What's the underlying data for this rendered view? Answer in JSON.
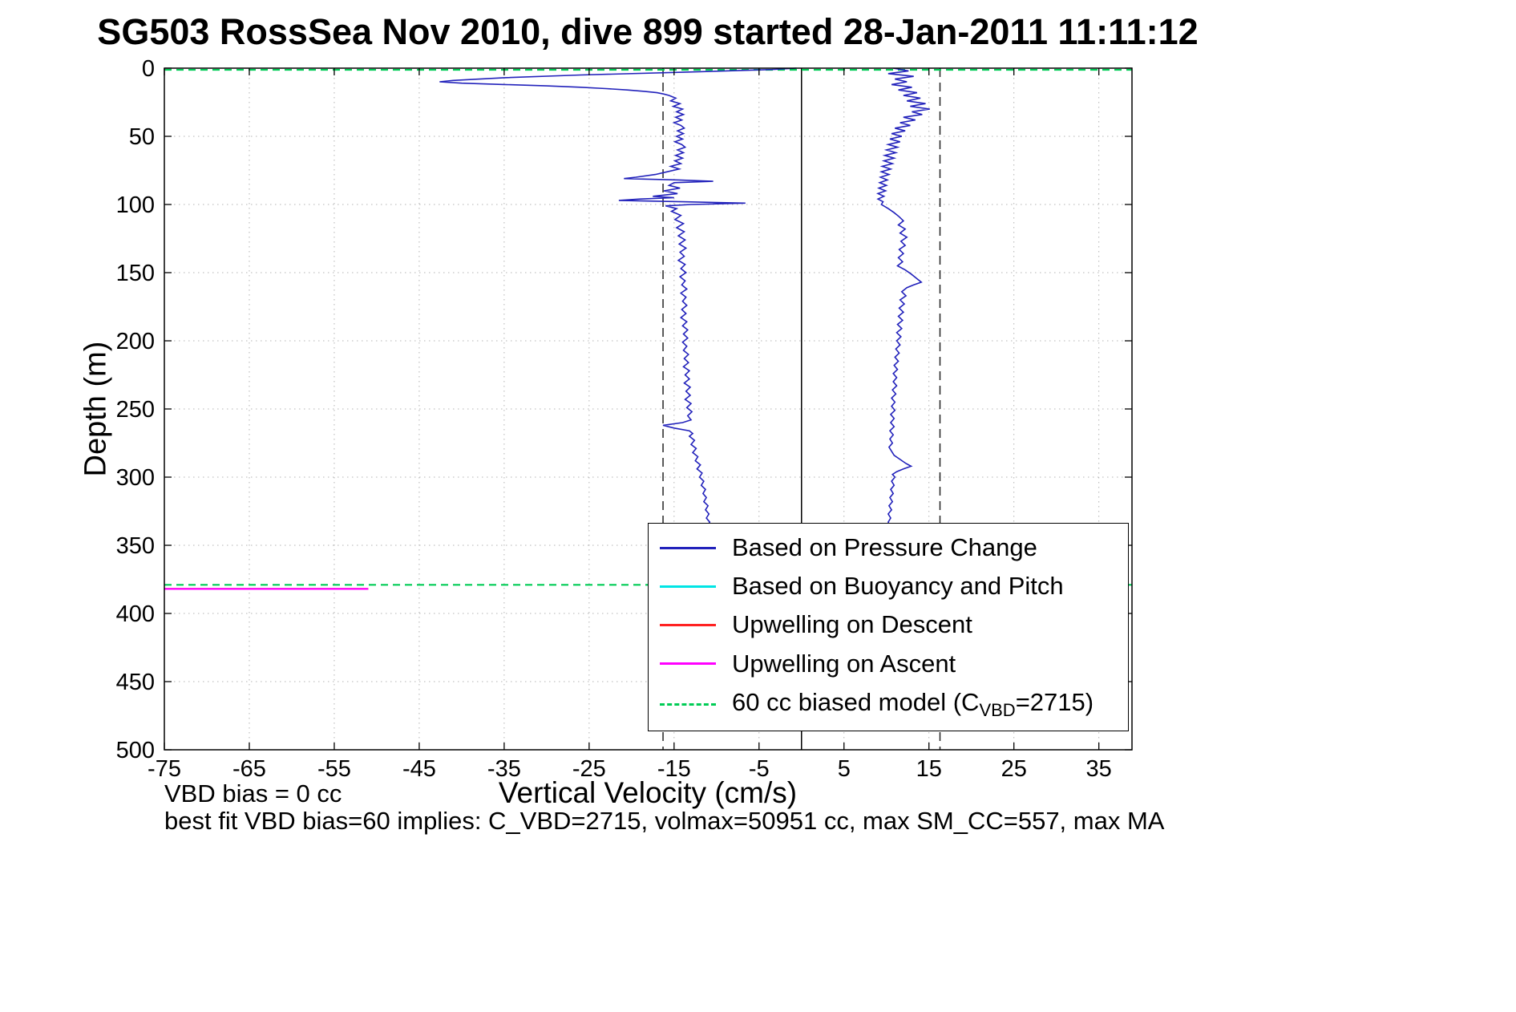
{
  "annotations": {
    "vbd_bias": "VBD bias = 0 cc",
    "best_fit": "best fit VBD bias=60 implies: C_VBD=2715, volmax=50951 cc, max SM_CC=557, max MA"
  },
  "chart_data": {
    "type": "line",
    "title": "SG503 RossSea Nov 2010, dive 899 started 28-Jan-2011 11:11:12",
    "xlabel": "Vertical Velocity (cm/s)",
    "ylabel": "Depth (m)",
    "xlim": [
      -75,
      38.9
    ],
    "ylim": [
      0,
      500
    ],
    "y_inverted": true,
    "grid": true,
    "legend_position": "center-right",
    "x_ticks": [
      -75,
      -65,
      -55,
      -45,
      -35,
      -25,
      -15,
      -5,
      5,
      15,
      25,
      35
    ],
    "y_ticks": [
      0,
      50,
      100,
      150,
      200,
      250,
      300,
      350,
      400,
      450,
      500
    ],
    "colors": {
      "pressure": "#2222bb",
      "buoyancy": "#00e5e5",
      "upwelling_descent": "#ff2222",
      "upwelling_ascent": "#ff00ff",
      "biased_model": "#00cc55",
      "grid": "#b3b3b3",
      "axis": "#000000"
    },
    "reference_lines": [
      {
        "orientation": "vertical",
        "x": 0,
        "color": "#000000",
        "style": "solid",
        "name": "zero-velocity-line"
      },
      {
        "orientation": "vertical",
        "x": -16.3,
        "color": "#222222",
        "style": "dashed",
        "name": "max-descent-speed-line"
      },
      {
        "orientation": "vertical",
        "x": 16.3,
        "color": "#222222",
        "style": "dashed",
        "name": "max-ascent-speed-line"
      }
    ],
    "segments": [
      {
        "name": "biased-model-surface-line",
        "color": "#00cc55",
        "style": "dashed",
        "depth": 1.2,
        "x_from": -75,
        "x_to": 38.9
      },
      {
        "name": "biased-model-deep-line",
        "color": "#00cc55",
        "style": "dashed",
        "depth": 379,
        "x_from": -75,
        "x_to": 38.9
      },
      {
        "name": "upwelling-descent-line",
        "color": "#ff2222",
        "style": "solid",
        "depth": 382,
        "x_from": -75,
        "x_to": -51
      },
      {
        "name": "upwelling-ascent-line",
        "color": "#ff00ff",
        "style": "solid",
        "depth": 382,
        "x_from": -75,
        "x_to": -51
      }
    ],
    "series": [
      {
        "name": "Based on Pressure Change (descent)",
        "color": "#2222bb",
        "style": "solid",
        "points": [
          [
            0,
            -0.6
          ],
          [
            1,
            -3.5
          ],
          [
            3,
            -14
          ],
          [
            5,
            -26
          ],
          [
            7,
            -35
          ],
          [
            9,
            -41
          ],
          [
            10,
            -42.6
          ],
          [
            11,
            -40
          ],
          [
            12,
            -35
          ],
          [
            13,
            -30
          ],
          [
            14,
            -26
          ],
          [
            15,
            -23
          ],
          [
            16,
            -20.5
          ],
          [
            17,
            -18.5
          ],
          [
            18,
            -17
          ],
          [
            19,
            -16.2
          ],
          [
            20,
            -15.6
          ],
          [
            22,
            -14.8
          ],
          [
            24,
            -15.4
          ],
          [
            26,
            -14.3
          ],
          [
            28,
            -15.1
          ],
          [
            30,
            -14
          ],
          [
            32,
            -14.7
          ],
          [
            34,
            -13.9
          ],
          [
            36,
            -14.8
          ],
          [
            38,
            -14.1
          ],
          [
            40,
            -15
          ],
          [
            42,
            -14.2
          ],
          [
            44,
            -13.8
          ],
          [
            46,
            -14.6
          ],
          [
            48,
            -13.9
          ],
          [
            50,
            -14.7
          ],
          [
            52,
            -14
          ],
          [
            54,
            -14.9
          ],
          [
            56,
            -14.1
          ],
          [
            58,
            -13.7
          ],
          [
            60,
            -14.6
          ],
          [
            62,
            -13.9
          ],
          [
            64,
            -14.8
          ],
          [
            66,
            -14
          ],
          [
            68,
            -14.9
          ],
          [
            70,
            -14.2
          ],
          [
            72,
            -15.4
          ],
          [
            74,
            -14.4
          ],
          [
            76,
            -15.8
          ],
          [
            78,
            -17.2
          ],
          [
            80,
            -19.5
          ],
          [
            81,
            -20.9
          ],
          [
            82,
            -14.5
          ],
          [
            83,
            -10.4
          ],
          [
            84,
            -15
          ],
          [
            86,
            -15.6
          ],
          [
            88,
            -14.3
          ],
          [
            90,
            -16.2
          ],
          [
            92,
            -14.6
          ],
          [
            94,
            -17.5
          ],
          [
            95,
            -15
          ],
          [
            96,
            -19
          ],
          [
            97,
            -21.5
          ],
          [
            98,
            -14
          ],
          [
            99,
            -6.6
          ],
          [
            100,
            -13
          ],
          [
            101,
            -16
          ],
          [
            103,
            -14.7
          ],
          [
            105,
            -15.3
          ],
          [
            108,
            -14.2
          ],
          [
            111,
            -14.9
          ],
          [
            114,
            -13.9
          ],
          [
            117,
            -14.7
          ],
          [
            120,
            -13.8
          ],
          [
            123,
            -14.5
          ],
          [
            126,
            -13.7
          ],
          [
            129,
            -14.4
          ],
          [
            132,
            -13.6
          ],
          [
            135,
            -14.3
          ],
          [
            138,
            -13.8
          ],
          [
            141,
            -14.5
          ],
          [
            144,
            -13.7
          ],
          [
            147,
            -14.2
          ],
          [
            150,
            -13.6
          ],
          [
            153,
            -14.3
          ],
          [
            156,
            -13.7
          ],
          [
            159,
            -14.1
          ],
          [
            162,
            -13.5
          ],
          [
            165,
            -14.2
          ],
          [
            168,
            -13.6
          ],
          [
            171,
            -14
          ],
          [
            174,
            -13.5
          ],
          [
            177,
            -14.1
          ],
          [
            180,
            -13.6
          ],
          [
            183,
            -14.2
          ],
          [
            186,
            -13.5
          ],
          [
            189,
            -14
          ],
          [
            192,
            -13.4
          ],
          [
            195,
            -13.9
          ],
          [
            198,
            -13.4
          ],
          [
            201,
            -14
          ],
          [
            204,
            -13.5
          ],
          [
            207,
            -13.9
          ],
          [
            210,
            -13.3
          ],
          [
            213,
            -13.8
          ],
          [
            216,
            -13.3
          ],
          [
            219,
            -13.9
          ],
          [
            222,
            -13.2
          ],
          [
            225,
            -13.7
          ],
          [
            228,
            -13.2
          ],
          [
            231,
            -13.8
          ],
          [
            234,
            -13.1
          ],
          [
            237,
            -13.6
          ],
          [
            240,
            -13.1
          ],
          [
            243,
            -13.7
          ],
          [
            246,
            -13
          ],
          [
            249,
            -13.5
          ],
          [
            252,
            -12.9
          ],
          [
            255,
            -13.4
          ],
          [
            258,
            -13
          ],
          [
            260,
            -14
          ],
          [
            262,
            -16.3
          ],
          [
            264,
            -15
          ],
          [
            266,
            -13.2
          ],
          [
            268,
            -12.8
          ],
          [
            270,
            -13.2
          ],
          [
            273,
            -12.6
          ],
          [
            276,
            -13
          ],
          [
            279,
            -12.4
          ],
          [
            282,
            -12.8
          ],
          [
            285,
            -12.2
          ],
          [
            288,
            -12.5
          ],
          [
            291,
            -11.9
          ],
          [
            294,
            -12.3
          ],
          [
            297,
            -11.7
          ],
          [
            300,
            -12
          ],
          [
            303,
            -11.5
          ],
          [
            306,
            -11.8
          ],
          [
            309,
            -11.3
          ],
          [
            312,
            -11.6
          ],
          [
            315,
            -11.2
          ],
          [
            318,
            -11.5
          ],
          [
            321,
            -11
          ],
          [
            324,
            -11.3
          ],
          [
            327,
            -10.9
          ],
          [
            330,
            -11.2
          ],
          [
            333,
            -10.8
          ],
          [
            336,
            -11.1
          ],
          [
            339,
            -10.7
          ],
          [
            342,
            -11
          ],
          [
            345,
            -10.6
          ],
          [
            348,
            -10.8
          ]
        ]
      },
      {
        "name": "Based on Pressure Change (ascent)",
        "color": "#2222bb",
        "style": "solid",
        "points": [
          [
            0,
            10.8
          ],
          [
            2,
            12.6
          ],
          [
            4,
            10.2
          ],
          [
            6,
            13.2
          ],
          [
            8,
            11
          ],
          [
            10,
            12.4
          ],
          [
            12,
            10.6
          ],
          [
            14,
            13
          ],
          [
            16,
            11.4
          ],
          [
            18,
            13.6
          ],
          [
            20,
            12
          ],
          [
            22,
            14
          ],
          [
            24,
            12.4
          ],
          [
            26,
            14.6
          ],
          [
            28,
            12.8
          ],
          [
            30,
            15.1
          ],
          [
            32,
            13
          ],
          [
            34,
            14.2
          ],
          [
            36,
            12
          ],
          [
            38,
            13.4
          ],
          [
            40,
            11.6
          ],
          [
            42,
            12.8
          ],
          [
            44,
            11
          ],
          [
            46,
            12.2
          ],
          [
            48,
            10.6
          ],
          [
            50,
            11.8
          ],
          [
            52,
            10.4
          ],
          [
            54,
            11.6
          ],
          [
            56,
            10.2
          ],
          [
            58,
            11.3
          ],
          [
            60,
            10
          ],
          [
            62,
            11.1
          ],
          [
            64,
            9.8
          ],
          [
            66,
            10.9
          ],
          [
            68,
            9.7
          ],
          [
            70,
            10.7
          ],
          [
            72,
            9.5
          ],
          [
            74,
            10.5
          ],
          [
            76,
            9.4
          ],
          [
            78,
            10.3
          ],
          [
            80,
            9.3
          ],
          [
            82,
            10.1
          ],
          [
            84,
            9.2
          ],
          [
            86,
            10
          ],
          [
            88,
            9.1
          ],
          [
            90,
            9.9
          ],
          [
            92,
            9
          ],
          [
            94,
            9.7
          ],
          [
            96,
            9
          ],
          [
            98,
            9.6
          ],
          [
            100,
            9.4
          ],
          [
            103,
            10.2
          ],
          [
            106,
            10.9
          ],
          [
            109,
            11.5
          ],
          [
            112,
            12
          ],
          [
            115,
            11.4
          ],
          [
            118,
            12.2
          ],
          [
            121,
            11.6
          ],
          [
            124,
            12.4
          ],
          [
            127,
            11.7
          ],
          [
            130,
            12.2
          ],
          [
            133,
            11.5
          ],
          [
            136,
            12
          ],
          [
            139,
            11.4
          ],
          [
            142,
            11.9
          ],
          [
            145,
            11.3
          ],
          [
            148,
            12.2
          ],
          [
            151,
            12.9
          ],
          [
            154,
            13.5
          ],
          [
            157,
            14.1
          ],
          [
            159,
            13.2
          ],
          [
            161,
            12.4
          ],
          [
            164,
            11.8
          ],
          [
            167,
            12.3
          ],
          [
            170,
            11.6
          ],
          [
            173,
            12.1
          ],
          [
            176,
            11.5
          ],
          [
            179,
            12
          ],
          [
            182,
            11.4
          ],
          [
            185,
            11.9
          ],
          [
            188,
            11.3
          ],
          [
            191,
            11.8
          ],
          [
            194,
            11.2
          ],
          [
            197,
            11.7
          ],
          [
            200,
            11.2
          ],
          [
            203,
            11.6
          ],
          [
            206,
            11.1
          ],
          [
            209,
            11.5
          ],
          [
            212,
            11
          ],
          [
            215,
            11.4
          ],
          [
            218,
            10.9
          ],
          [
            221,
            11.3
          ],
          [
            224,
            10.8
          ],
          [
            227,
            11.2
          ],
          [
            230,
            10.8
          ],
          [
            233,
            11.2
          ],
          [
            236,
            10.7
          ],
          [
            239,
            11.1
          ],
          [
            242,
            10.6
          ],
          [
            245,
            11
          ],
          [
            248,
            10.6
          ],
          [
            251,
            11
          ],
          [
            254,
            10.5
          ],
          [
            257,
            10.9
          ],
          [
            260,
            10.5
          ],
          [
            263,
            10.9
          ],
          [
            266,
            10.4
          ],
          [
            269,
            10.8
          ],
          [
            272,
            10.4
          ],
          [
            275,
            10.7
          ],
          [
            278,
            10.3
          ],
          [
            281,
            10.6
          ],
          [
            284,
            10.9
          ],
          [
            287,
            11.6
          ],
          [
            290,
            12.3
          ],
          [
            292,
            12.9
          ],
          [
            294,
            12
          ],
          [
            296,
            11.2
          ],
          [
            298,
            10.7
          ],
          [
            300,
            11
          ],
          [
            303,
            10.6
          ],
          [
            306,
            10.9
          ],
          [
            309,
            10.5
          ],
          [
            312,
            10.8
          ],
          [
            315,
            10.4
          ],
          [
            318,
            10.7
          ],
          [
            321,
            10.3
          ],
          [
            324,
            10.6
          ],
          [
            327,
            10.2
          ],
          [
            330,
            10.5
          ],
          [
            333,
            10.2
          ],
          [
            336,
            10.4
          ],
          [
            339,
            10.1
          ],
          [
            342,
            10.3
          ],
          [
            345,
            10
          ],
          [
            348,
            10.2
          ]
        ]
      }
    ],
    "legend": [
      {
        "label": "Based on Pressure Change",
        "color": "#2222bb",
        "style": "solid"
      },
      {
        "label": "Based on Buoyancy and Pitch",
        "color": "#00e5e5",
        "style": "solid"
      },
      {
        "label": "Upwelling on Descent",
        "color": "#ff2222",
        "style": "solid"
      },
      {
        "label": "Upwelling on Ascent",
        "color": "#ff00ff",
        "style": "solid"
      },
      {
        "label_pre": "60 cc biased model (C",
        "label_sub": "VBD",
        "label_post": "=2715)",
        "color": "#00cc55",
        "style": "dashed"
      }
    ]
  }
}
